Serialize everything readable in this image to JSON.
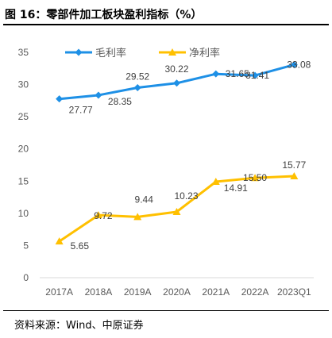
{
  "figure": {
    "title": "图 16：零部件加工板块盈利指标（%）",
    "source": "资料来源：Wind、中原证券"
  },
  "colors": {
    "gross_margin": "#1E90E6",
    "net_margin": "#FFC000",
    "axis_text": "#595959",
    "grid": "#D9D9D9"
  },
  "chart_data": {
    "type": "line",
    "categories": [
      "2017A",
      "2018A",
      "2019A",
      "2020A",
      "2021A",
      "2022A",
      "2023Q1"
    ],
    "series": [
      {
        "name": "毛利率",
        "values": [
          27.77,
          28.35,
          29.52,
          30.22,
          31.65,
          31.41,
          33.08
        ],
        "labels": [
          "27.77",
          "28.35",
          "29.52",
          "30.22",
          "31.65",
          "31.41",
          "33.08"
        ]
      },
      {
        "name": "净利率",
        "values": [
          5.65,
          9.72,
          9.44,
          10.23,
          14.91,
          15.5,
          15.77
        ],
        "labels": [
          "5.65",
          "9.72",
          "9.44",
          "10.23",
          "14.91",
          "15.50",
          "15.77"
        ]
      }
    ],
    "ylim": [
      0,
      35
    ],
    "yticks": [
      "0",
      "5",
      "10",
      "15",
      "20",
      "25",
      "30",
      "35"
    ],
    "grid": false,
    "legend": "top-left"
  }
}
